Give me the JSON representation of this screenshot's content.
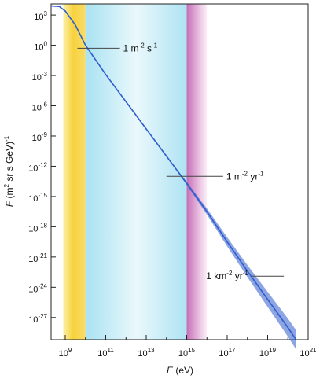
{
  "chart_data": {
    "type": "area",
    "xlabel": {
      "italic": "E",
      "rest": " (eV)"
    },
    "ylabel": {
      "italic": "F",
      "rest": " (m",
      "sup1": "2",
      "mid": " sr s GeV)",
      "sup2": "-1"
    },
    "x_scale": "log",
    "y_scale": "log",
    "x_exponent_range": [
      8.3,
      21
    ],
    "y_exponent_range": [
      -29.2,
      4.1
    ],
    "x_ticks": [
      {
        "base": "10",
        "exp": "9",
        "e": 9
      },
      {
        "base": "10",
        "exp": "11",
        "e": 11
      },
      {
        "base": "10",
        "exp": "13",
        "e": 13
      },
      {
        "base": "10",
        "exp": "15",
        "e": 15
      },
      {
        "base": "10",
        "exp": "17",
        "e": 17
      },
      {
        "base": "10",
        "exp": "19",
        "e": 19
      },
      {
        "base": "10",
        "exp": "21",
        "e": 21
      }
    ],
    "y_ticks": [
      {
        "base": "10",
        "exp": "3",
        "e": 3
      },
      {
        "base": "10",
        "exp": "0",
        "e": 0
      },
      {
        "base": "10",
        "exp": "-3",
        "e": -3
      },
      {
        "base": "10",
        "exp": "-6",
        "e": -6
      },
      {
        "base": "10",
        "exp": "-9",
        "e": -9
      },
      {
        "base": "10",
        "exp": "-12",
        "e": -12
      },
      {
        "base": "10",
        "exp": "-15",
        "e": -15
      },
      {
        "base": "10",
        "exp": "-18",
        "e": -18
      },
      {
        "base": "10",
        "exp": "-21",
        "e": -21
      },
      {
        "base": "10",
        "exp": "-24",
        "e": -24
      },
      {
        "base": "10",
        "exp": "-27",
        "e": -27
      }
    ],
    "bands": [
      {
        "from_e": 8.9,
        "to_e": 10.0,
        "color": "#f7d23c",
        "description": "yellow"
      },
      {
        "from_e": 10.0,
        "to_e": 15.0,
        "color": "#b6e6f3",
        "description": "cyan"
      },
      {
        "from_e": 15.0,
        "to_e": 16.0,
        "color": "#d27fc2",
        "description": "magenta"
      }
    ],
    "series": [
      {
        "color": "#2f5dcc",
        "points": [
          {
            "log_e": 8.3,
            "log_f": 3.9,
            "spread": 0
          },
          {
            "log_e": 8.7,
            "log_f": 3.85,
            "spread": 0
          },
          {
            "log_e": 9.0,
            "log_f": 3.4,
            "spread": 0
          },
          {
            "log_e": 9.5,
            "log_f": 2.0,
            "spread": 0
          },
          {
            "log_e": 10.0,
            "log_f": 0.0,
            "spread": 0
          },
          {
            "log_e": 11.0,
            "log_f": -2.9,
            "spread": 0
          },
          {
            "log_e": 12.0,
            "log_f": -5.6,
            "spread": 0
          },
          {
            "log_e": 13.0,
            "log_f": -8.3,
            "spread": 0
          },
          {
            "log_e": 14.0,
            "log_f": -11.0,
            "spread": 0.1
          },
          {
            "log_e": 15.0,
            "log_f": -13.7,
            "spread": 0.3
          },
          {
            "log_e": 16.0,
            "log_f": -16.5,
            "spread": 0.6
          },
          {
            "log_e": 17.0,
            "log_f": -19.5,
            "spread": 0.9
          },
          {
            "log_e": 18.0,
            "log_f": -22.4,
            "spread": 1.2
          },
          {
            "log_e": 19.0,
            "log_f": -25.2,
            "spread": 1.5
          },
          {
            "log_e": 20.0,
            "log_f": -28.0,
            "spread": 1.8
          },
          {
            "log_e": 20.4,
            "log_f": -29.2,
            "spread": 1.9
          }
        ]
      }
    ],
    "annotations": [
      {
        "main": "1 m",
        "sup": "-2",
        "main2": " s",
        "sup2": "-1",
        "line_from_e": 9.6,
        "line_to_e": 11.7,
        "log_f": -0.3
      },
      {
        "main": "1 m",
        "sup": "-2",
        "main2": " yr",
        "sup2": "-1",
        "line_from_e": 14.0,
        "line_to_e": 16.8,
        "log_f": -13.0
      },
      {
        "main": "1 km",
        "sup": "-2",
        "main2": " yr",
        "sup2": "-1",
        "line_from_e": 18.2,
        "line_to_e": 19.8,
        "log_f": -22.9
      }
    ]
  }
}
